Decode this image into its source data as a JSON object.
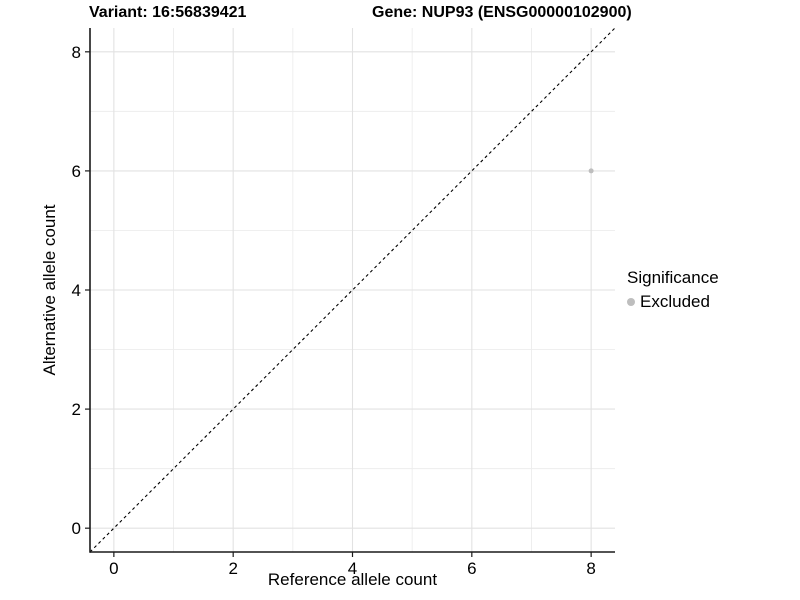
{
  "titles": {
    "variant": "Variant: 16:56839421",
    "gene": "Gene: NUP93 (ENSG00000102900)"
  },
  "chart_data": {
    "type": "scatter",
    "title": "Variant: 16:56839421   Gene: NUP93 (ENSG00000102900)",
    "xlabel": "Reference allele count",
    "ylabel": "Alternative allele count",
    "xlim": [
      -0.4,
      8.4
    ],
    "ylim": [
      -0.4,
      8.4
    ],
    "xticks": [
      0,
      2,
      4,
      6,
      8
    ],
    "yticks": [
      0,
      2,
      4,
      6,
      8
    ],
    "minor_gridlines": [
      1,
      3,
      5,
      7
    ],
    "grid": "on",
    "series": [
      {
        "name": "Excluded",
        "color": "#bebebe",
        "points": [
          {
            "x": 8,
            "y": 6
          }
        ]
      }
    ],
    "reference_line": {
      "type": "identity",
      "style": "dashed",
      "color": "#000000"
    },
    "legend": {
      "position": "right",
      "title": "Significance",
      "entries": [
        {
          "label": "Excluded",
          "color": "#bebebe"
        }
      ]
    },
    "colors": {
      "background": "#ffffff",
      "grid_major": "#e2e2e2",
      "grid_minor": "#ededed",
      "axis_line": "#1a1a1a",
      "tick_label": "#000000",
      "point": "#bebebe"
    }
  }
}
